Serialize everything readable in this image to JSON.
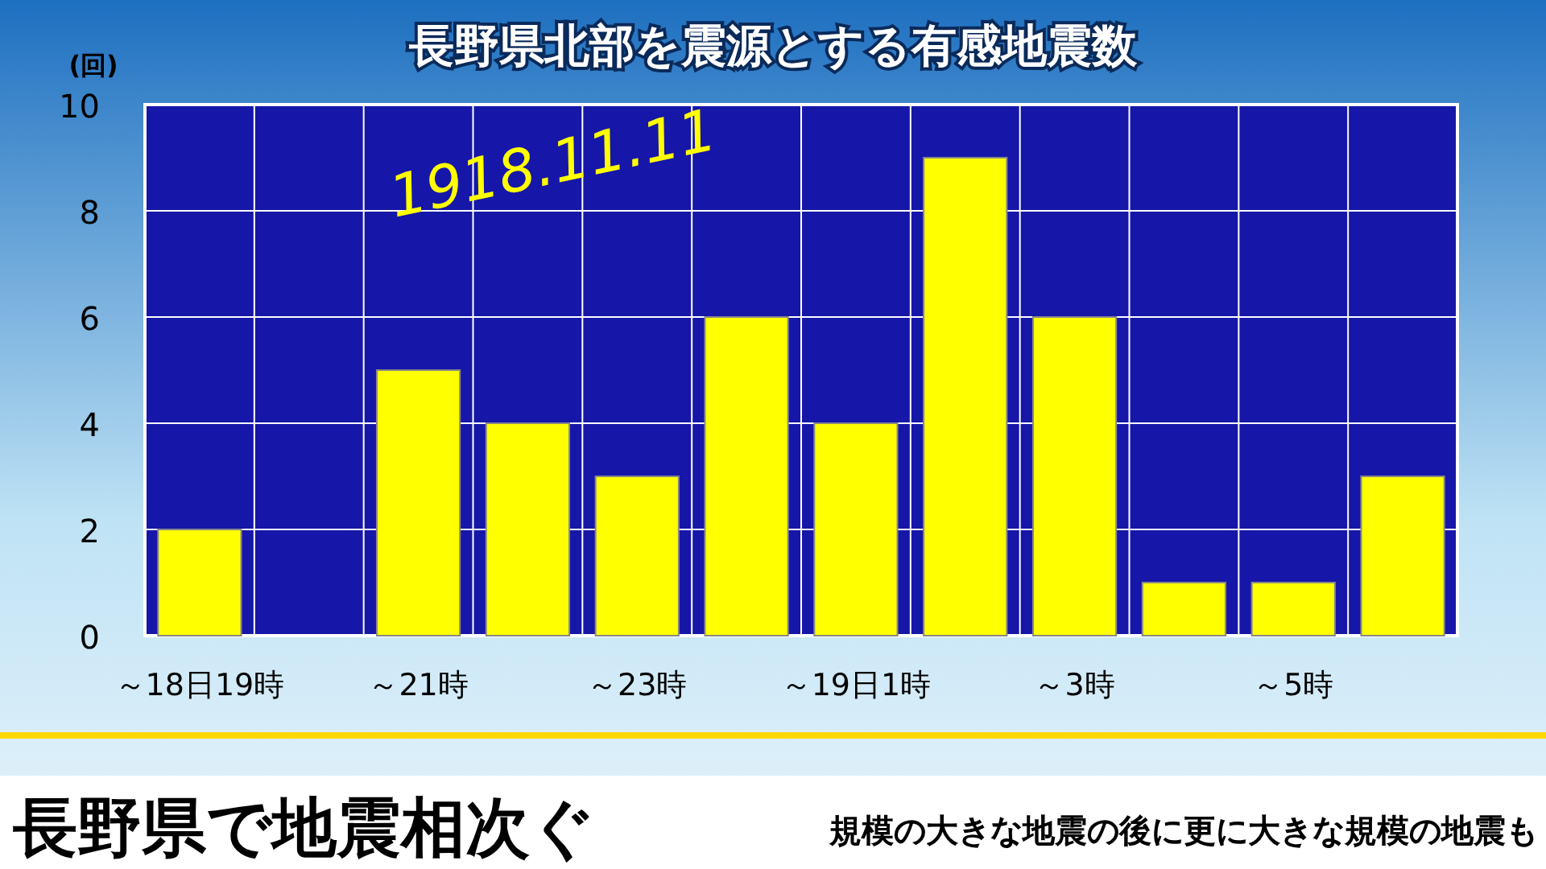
{
  "chart_data": {
    "type": "bar",
    "title": "長野県北部を震源とする有感地震数",
    "ylabel": "(回)",
    "categories": [
      "～18日19時",
      null,
      "～21時",
      null,
      "～23時",
      null,
      "～19日1時",
      null,
      "～3時",
      null,
      "～5時",
      null
    ],
    "values": [
      2,
      0,
      5,
      4,
      3,
      6,
      4,
      9,
      6,
      1,
      1,
      3
    ],
    "color": "#ffff00",
    "ylim": [
      0,
      10
    ],
    "yticks": [
      0,
      2,
      4,
      6,
      8,
      10
    ],
    "grid": true,
    "annotations": [
      "1918.11.11",
      "長野県で地震相次ぐ",
      "規模の大きな地震の後に更に大きな規模の地震も"
    ]
  }
}
